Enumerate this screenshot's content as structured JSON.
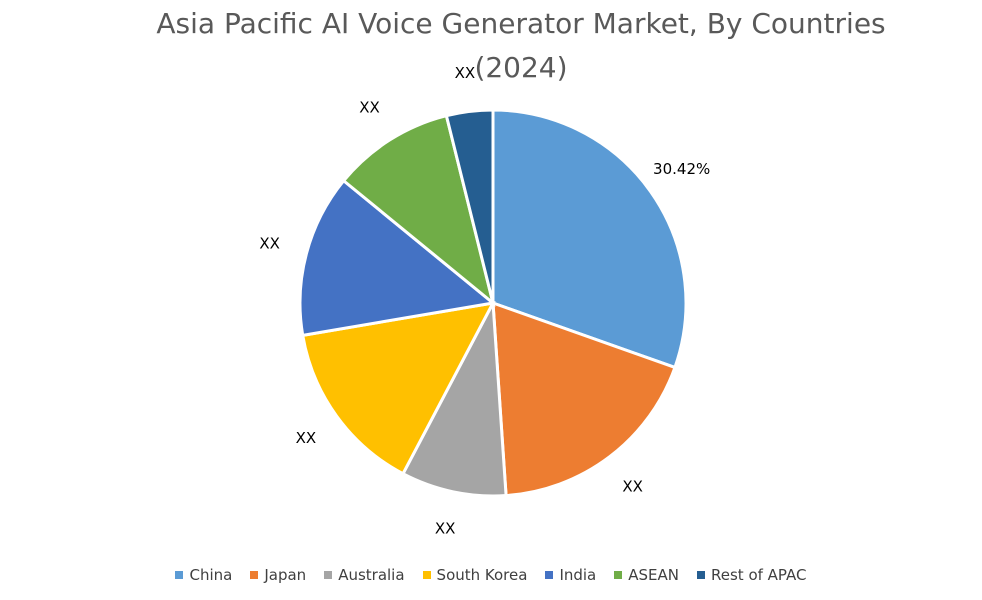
{
  "chart_data": {
    "type": "pie",
    "title": "Asia Pacific AI Voice Generator Market, By Countries (2024)",
    "categories": [
      "China",
      "Japan",
      "Australia",
      "South Korea",
      "India",
      "ASEAN",
      "Rest of APAC"
    ],
    "values": [
      30.42,
      18.5,
      8.8,
      14.6,
      13.6,
      10.2,
      3.88
    ],
    "value_labels": [
      "30.42%",
      "XX",
      "XX",
      "XX",
      "XX",
      "XX",
      "XX"
    ],
    "colors": [
      "#5b9bd5",
      "#ed7d31",
      "#a5a5a5",
      "#ffc000",
      "#4472c4",
      "#70ad47",
      "#255e91"
    ],
    "legend": "bottom"
  }
}
